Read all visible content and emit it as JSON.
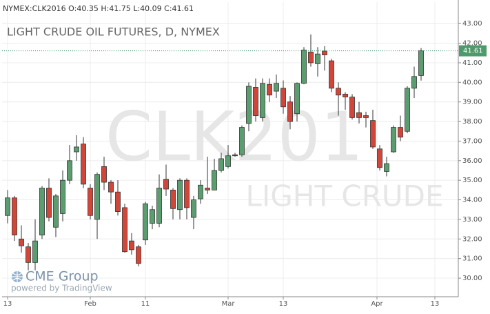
{
  "chart_data": {
    "type": "candlestick",
    "header": {
      "symbol": "NYMEX:CLK2016",
      "o_label": "O:",
      "h_label": "H:",
      "l_label": "L:",
      "c_label": "C:"
    },
    "title": "LIGHT CRUDE OIL FUTURES, D, NYMEX",
    "watermark": [
      "CLK201",
      "LIGHT CRUDE"
    ],
    "branding": {
      "logo": "CME Group",
      "powered": "powered by TradingView"
    },
    "up_color": "#5a9e6f",
    "down_color": "#d2463a",
    "open": [
      33.2,
      34.1,
      32.0,
      31.6,
      30.8,
      32.2,
      34.6,
      32.6,
      33.3,
      35.0,
      36.45,
      36.85,
      34.6,
      33.0,
      35.7,
      34.9,
      34.4,
      33.6,
      31.9,
      31.6,
      31.95,
      32.8,
      32.8,
      35.05,
      34.5,
      33.5,
      35.0,
      33.1,
      34.05,
      34.6,
      34.5,
      35.5,
      35.7,
      36.3,
      36.3,
      37.9,
      39.75,
      38.2,
      39.9,
      39.55,
      39.7,
      39.0,
      38.4,
      39.95,
      41.55,
      40.95,
      41.6,
      41.1,
      39.7,
      39.4,
      39.25,
      38.45,
      38.3,
      38.05,
      36.6,
      35.45,
      36.45,
      37.7,
      37.5,
      39.7,
      40.35
    ],
    "high": [
      34.5,
      34.2,
      32.7,
      31.8,
      33.0,
      34.7,
      35.1,
      34.3,
      35.5,
      36.8,
      37.3,
      37.2,
      34.8,
      35.4,
      36.2,
      35.0,
      35.0,
      33.8,
      32.3,
      31.7,
      33.9,
      33.7,
      35.3,
      35.8,
      34.6,
      35.1,
      35.1,
      34.2,
      35.0,
      36.2,
      36.1,
      36.4,
      36.8,
      36.4,
      37.8,
      40.0,
      40.2,
      40.2,
      40.2,
      40.4,
      40.1,
      39.3,
      40.0,
      41.8,
      42.45,
      41.8,
      41.85,
      41.2,
      40.0,
      39.5,
      39.4,
      39.0,
      38.5,
      38.6,
      36.8,
      36.2,
      37.8,
      38.3,
      39.8,
      40.8,
      41.75
    ],
    "low": [
      32.8,
      31.9,
      31.3,
      30.4,
      30.4,
      32.0,
      32.9,
      32.1,
      32.9,
      34.8,
      36.0,
      34.6,
      33.0,
      32.0,
      34.5,
      33.8,
      33.2,
      31.3,
      31.2,
      30.6,
      31.7,
      32.5,
      32.6,
      34.2,
      33.0,
      33.0,
      33.0,
      32.5,
      33.8,
      34.3,
      34.5,
      35.4,
      35.6,
      36.2,
      36.2,
      37.5,
      38.0,
      38.0,
      39.0,
      39.2,
      38.4,
      37.6,
      38.0,
      39.9,
      40.8,
      40.3,
      40.6,
      39.5,
      38.3,
      38.6,
      38.1,
      37.9,
      37.7,
      36.6,
      35.5,
      35.2,
      36.4,
      37.0,
      37.4,
      39.2,
      40.09
    ],
    "close": [
      34.1,
      32.2,
      31.65,
      30.8,
      31.9,
      34.6,
      33.1,
      34.2,
      35.0,
      36.0,
      36.7,
      34.8,
      33.2,
      35.3,
      34.9,
      34.4,
      33.4,
      31.35,
      31.45,
      30.75,
      33.8,
      33.5,
      34.6,
      34.55,
      33.55,
      35.0,
      33.6,
      34.0,
      34.75,
      34.5,
      35.5,
      36.1,
      36.25,
      36.25,
      37.7,
      39.8,
      38.3,
      39.95,
      39.35,
      39.95,
      38.75,
      38.0,
      39.95,
      41.65,
      41.0,
      41.45,
      41.4,
      39.7,
      39.35,
      39.25,
      38.2,
      38.2,
      38.2,
      36.7,
      35.65,
      35.85,
      37.7,
      37.2,
      39.7,
      40.3,
      41.61
    ],
    "xlim": [
      -0.8,
      65.4
    ],
    "xticks": [
      {
        "value": 0,
        "label": "13"
      },
      {
        "value": 12,
        "label": "Feb"
      },
      {
        "value": 20,
        "label": "11"
      },
      {
        "value": 32,
        "label": "Mar"
      },
      {
        "value": 40,
        "label": "13"
      },
      {
        "value": 53.6,
        "label": "Apr"
      },
      {
        "value": 62,
        "label": "13"
      }
    ],
    "ylim": [
      29.05,
      44.1
    ],
    "yticks": [
      {
        "value": 30,
        "label": "30.00"
      },
      {
        "value": 31,
        "label": "31.00"
      },
      {
        "value": 32,
        "label": "32.00"
      },
      {
        "value": 33,
        "label": "33.00"
      },
      {
        "value": 34,
        "label": "34.00"
      },
      {
        "value": 35,
        "label": "35.00"
      },
      {
        "value": 36,
        "label": "36.00"
      },
      {
        "value": 37,
        "label": "37.00"
      },
      {
        "value": 38,
        "label": "38.00"
      },
      {
        "value": 39,
        "label": "39.00"
      },
      {
        "value": 40,
        "label": "40.00"
      },
      {
        "value": 41,
        "label": "41.00"
      },
      {
        "value": 42,
        "label": "42.00"
      },
      {
        "value": 43,
        "label": "43.00"
      }
    ],
    "grid": true
  }
}
